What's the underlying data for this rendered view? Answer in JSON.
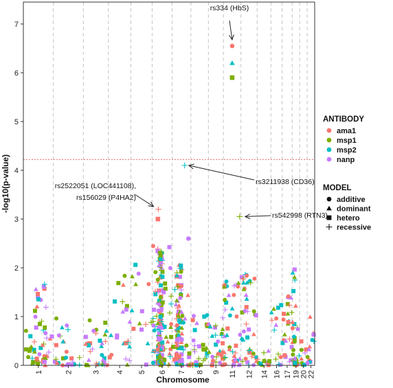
{
  "chart_data": {
    "type": "scatter",
    "title": "",
    "xlabel": "Chromosome",
    "ylabel": "-log10(p-value)",
    "ylim": [
      0,
      7.45
    ],
    "y_ticks": [
      0,
      1,
      2,
      3,
      4,
      5,
      6,
      7
    ],
    "grid": "vertical dashed gridlines between chromosomes",
    "chromosomes": [
      {
        "label": "1",
        "start": 0,
        "end": 1.2
      },
      {
        "label": "2",
        "start": 1.2,
        "end": 2.4
      },
      {
        "label": "3",
        "start": 2.4,
        "end": 3.4
      },
      {
        "label": "4",
        "start": 3.4,
        "end": 4.3
      },
      {
        "label": "5",
        "start": 4.3,
        "end": 5.15
      },
      {
        "label": "6",
        "start": 5.15,
        "end": 5.95
      },
      {
        "label": "7",
        "start": 5.95,
        "end": 6.7
      },
      {
        "label": "8",
        "start": 6.7,
        "end": 7.4
      },
      {
        "label": "9",
        "start": 7.4,
        "end": 8.0
      },
      {
        "label": "11",
        "start": 8.0,
        "end": 8.7
      },
      {
        "label": "12",
        "start": 8.7,
        "end": 9.35
      },
      {
        "label": "14",
        "start": 9.35,
        "end": 9.9
      },
      {
        "label": "16",
        "start": 9.9,
        "end": 10.35
      },
      {
        "label": "17",
        "start": 10.35,
        "end": 10.75
      },
      {
        "label": "19",
        "start": 10.75,
        "end": 11.05
      },
      {
        "label": "20",
        "start": 11.05,
        "end": 11.35
      },
      {
        "label": "22",
        "start": 11.35,
        "end": 11.65
      }
    ],
    "threshold": 4.22,
    "threshold_color": "#f08080",
    "antibody_legend_title": "ANTIBODY",
    "model_legend_title": "MODEL",
    "antibodies": [
      {
        "name": "ama1",
        "color": "#F8766D"
      },
      {
        "name": "msp1",
        "color": "#7CAE00"
      },
      {
        "name": "msp2",
        "color": "#00BFC4"
      },
      {
        "name": "nanp",
        "color": "#C77CFF"
      }
    ],
    "models": [
      {
        "name": "additive",
        "shape": "circle"
      },
      {
        "name": "dominant",
        "shape": "triangle"
      },
      {
        "name": "hetero",
        "shape": "square"
      },
      {
        "name": "recessive",
        "shape": "plus"
      }
    ],
    "highlighted_points": [
      {
        "x": 8.35,
        "y": 6.55,
        "antibody": "ama1",
        "model": "additive"
      },
      {
        "x": 8.35,
        "y": 6.2,
        "antibody": "msp2",
        "model": "dominant"
      },
      {
        "x": 8.35,
        "y": 5.9,
        "antibody": "msp1",
        "model": "hetero"
      },
      {
        "x": 6.45,
        "y": 4.1,
        "antibody": "msp2",
        "model": "recessive"
      },
      {
        "x": 8.65,
        "y": 3.05,
        "antibody": "msp1",
        "model": "recessive"
      },
      {
        "x": 5.4,
        "y": 3.2,
        "antibody": "ama1",
        "model": "recessive"
      },
      {
        "x": 5.38,
        "y": 3.0,
        "antibody": "ama1",
        "model": "hetero"
      },
      {
        "x": 6.6,
        "y": 2.6,
        "antibody": "nanp",
        "model": "additive"
      }
    ],
    "annotations": [
      {
        "text": "rs334 (HbS)",
        "x": 8.35,
        "y": 6.95
      },
      {
        "text": "rs3211938 (CD36)",
        "x": 6.45,
        "y": 4.1
      },
      {
        "text": "rs542998 (RTN3)",
        "x": 8.65,
        "y": 3.05
      },
      {
        "text": "rs2522051 (LOC441108),",
        "x": 5.4,
        "y": 3.2
      },
      {
        "text": "rs156029 (P4HA2)",
        "x": 5.4,
        "y": 3.2
      }
    ]
  }
}
